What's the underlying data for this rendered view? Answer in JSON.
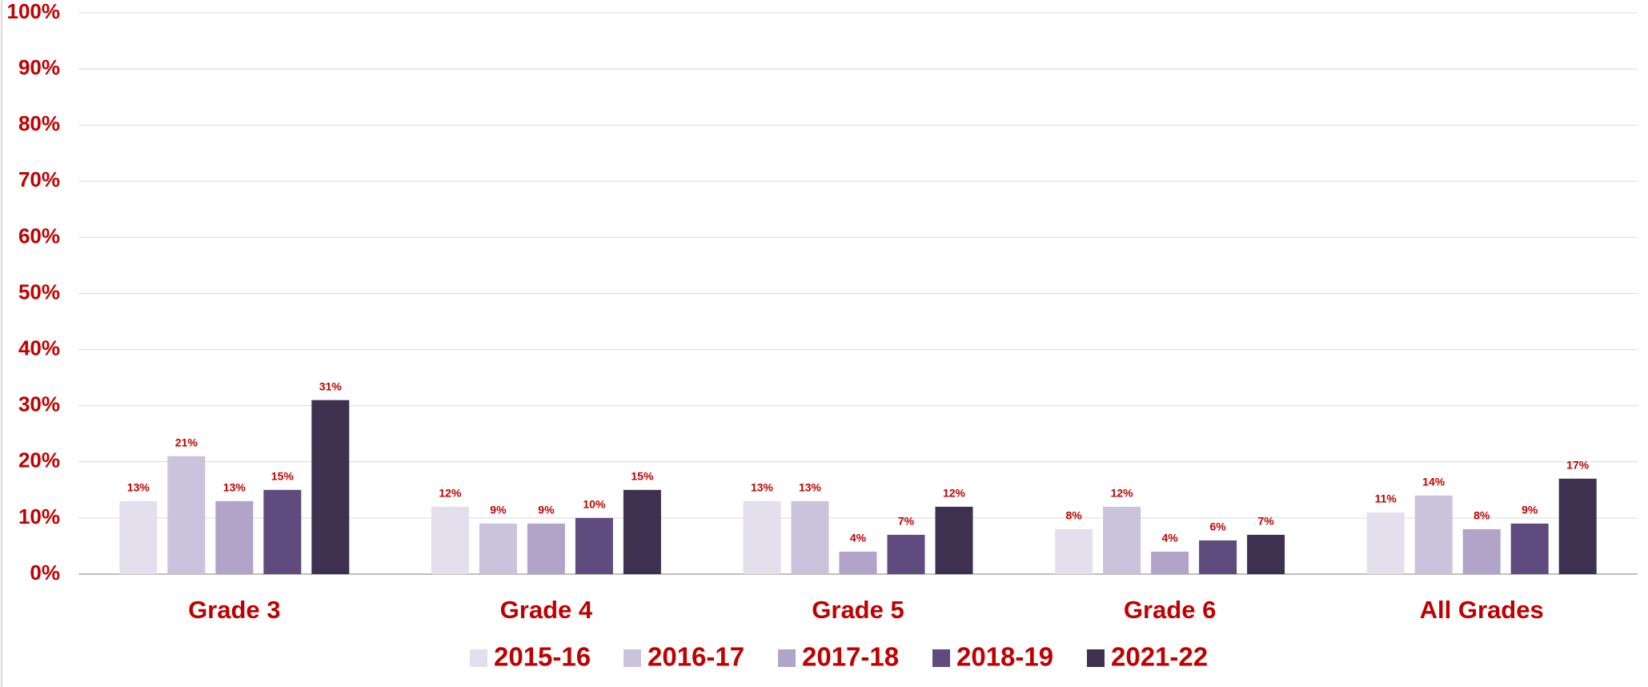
{
  "chart_data": {
    "type": "bar",
    "categories": [
      "Grade 3",
      "Grade 4",
      "Grade 5",
      "Grade 6",
      "All Grades"
    ],
    "series": [
      {
        "name": "2015-16",
        "color": "#e4dfec",
        "values": [
          13,
          12,
          13,
          8,
          11
        ],
        "value_labels": [
          "13%",
          "12%",
          "13%",
          "8%",
          "11%"
        ]
      },
      {
        "name": "2016-17",
        "color": "#cbc2dc",
        "values": [
          21,
          9,
          13,
          12,
          14
        ],
        "value_labels": [
          "21%",
          "9%",
          "13%",
          "12%",
          "14%"
        ]
      },
      {
        "name": "2017-18",
        "color": "#b2a3c8",
        "values": [
          13,
          9,
          4,
          4,
          8
        ],
        "value_labels": [
          "13%",
          "9%",
          "4%",
          "4%",
          "8%"
        ]
      },
      {
        "name": "2018-19",
        "color": "#5f4b7e",
        "values": [
          15,
          10,
          7,
          6,
          9
        ],
        "value_labels": [
          "15%",
          "10%",
          "7%",
          "6%",
          "9%"
        ]
      },
      {
        "name": "2021-22",
        "color": "#3e3150",
        "values": [
          31,
          15,
          12,
          7,
          17
        ],
        "value_labels": [
          "31%",
          "15%",
          "12%",
          "7%",
          "17%"
        ]
      }
    ],
    "ylim": [
      0,
      100
    ],
    "yticks": [
      {
        "value": 0,
        "label": "0%"
      },
      {
        "value": 10,
        "label": "10%"
      },
      {
        "value": 20,
        "label": "20%"
      },
      {
        "value": 30,
        "label": "30%"
      },
      {
        "value": 40,
        "label": "40%"
      },
      {
        "value": 50,
        "label": "50%"
      },
      {
        "value": 60,
        "label": "60%"
      },
      {
        "value": 70,
        "label": "70%"
      },
      {
        "value": 80,
        "label": "80%"
      },
      {
        "value": 90,
        "label": "90%"
      },
      {
        "value": 100,
        "label": "100%"
      }
    ],
    "grid": true,
    "legend": "bottom"
  }
}
